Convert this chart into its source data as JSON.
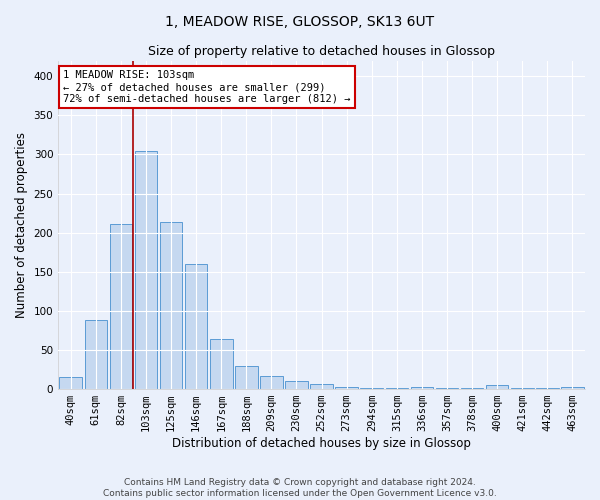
{
  "title_line1": "1, MEADOW RISE, GLOSSOP, SK13 6UT",
  "title_line2": "Size of property relative to detached houses in Glossop",
  "xlabel": "Distribution of detached houses by size in Glossop",
  "ylabel": "Number of detached properties",
  "bin_labels": [
    "40sqm",
    "61sqm",
    "82sqm",
    "103sqm",
    "125sqm",
    "146sqm",
    "167sqm",
    "188sqm",
    "209sqm",
    "230sqm",
    "252sqm",
    "273sqm",
    "294sqm",
    "315sqm",
    "336sqm",
    "357sqm",
    "378sqm",
    "400sqm",
    "421sqm",
    "442sqm",
    "463sqm"
  ],
  "bar_heights": [
    15,
    88,
    211,
    304,
    213,
    160,
    64,
    30,
    17,
    10,
    6,
    3,
    2,
    1,
    3,
    1,
    1,
    5,
    1,
    1,
    3
  ],
  "bar_color": "#c5d8f0",
  "bar_edge_color": "#5b9bd5",
  "vline_x": 2.5,
  "vline_color": "#aa0000",
  "annotation_title": "1 MEADOW RISE: 103sqm",
  "annotation_line1": "← 27% of detached houses are smaller (299)",
  "annotation_line2": "72% of semi-detached houses are larger (812) →",
  "annotation_box_color": "#ffffff",
  "annotation_box_edge_color": "#cc0000",
  "ylim": [
    0,
    420
  ],
  "yticks": [
    0,
    50,
    100,
    150,
    200,
    250,
    300,
    350,
    400
  ],
  "footer_line1": "Contains HM Land Registry data © Crown copyright and database right 2024.",
  "footer_line2": "Contains public sector information licensed under the Open Government Licence v3.0.",
  "background_color": "#eaf0fb",
  "plot_background_color": "#eaf0fb",
  "grid_color": "#ffffff",
  "title_fontsize": 10,
  "subtitle_fontsize": 9,
  "axis_label_fontsize": 8.5,
  "tick_fontsize": 7.5,
  "annotation_fontsize": 7.5,
  "footer_fontsize": 6.5
}
